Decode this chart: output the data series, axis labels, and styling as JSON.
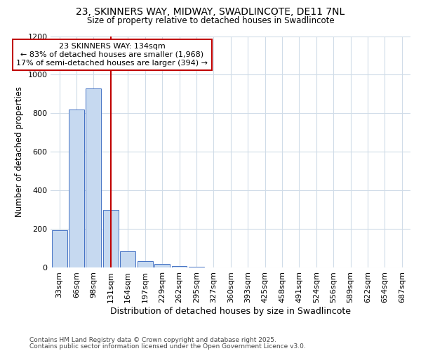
{
  "title1": "23, SKINNERS WAY, MIDWAY, SWADLINCOTE, DE11 7NL",
  "title2": "Size of property relative to detached houses in Swadlincote",
  "xlabel": "Distribution of detached houses by size in Swadlincote",
  "ylabel": "Number of detached properties",
  "bar_labels": [
    "33sqm",
    "66sqm",
    "98sqm",
    "131sqm",
    "164sqm",
    "197sqm",
    "229sqm",
    "262sqm",
    "295sqm",
    "327sqm",
    "360sqm",
    "393sqm",
    "425sqm",
    "458sqm",
    "491sqm",
    "524sqm",
    "556sqm",
    "589sqm",
    "622sqm",
    "654sqm",
    "687sqm"
  ],
  "bar_values": [
    195,
    820,
    930,
    300,
    85,
    35,
    20,
    10,
    5,
    3,
    0,
    0,
    0,
    0,
    0,
    0,
    0,
    0,
    0,
    0,
    0
  ],
  "bar_color": "#c6d9f0",
  "bar_edge_color": "#4472c4",
  "vline_x": 3.0,
  "vline_color": "#c00000",
  "annotation_text": "23 SKINNERS WAY: 134sqm\n← 83% of detached houses are smaller (1,968)\n17% of semi-detached houses are larger (394) →",
  "annotation_box_color": "#ffffff",
  "annotation_box_edge": "#c00000",
  "ylim": [
    0,
    1200
  ],
  "yticks": [
    0,
    200,
    400,
    600,
    800,
    1000,
    1200
  ],
  "footer1": "Contains HM Land Registry data © Crown copyright and database right 2025.",
  "footer2": "Contains public sector information licensed under the Open Government Licence v3.0.",
  "bg_color": "#ffffff",
  "plot_bg_color": "#ffffff",
  "grid_color": "#d0dce8"
}
